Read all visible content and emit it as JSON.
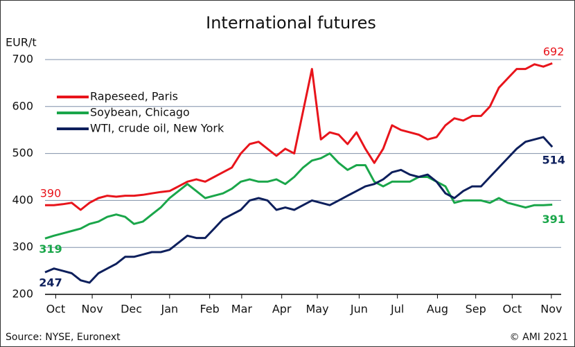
{
  "chart_data": {
    "type": "line",
    "title": "International futures",
    "y_label": "EUR/t",
    "source": "Source: NYSE, Euronext",
    "copyright": "© AMI 2021",
    "x": [
      0,
      1,
      2,
      3,
      4,
      5,
      6,
      7,
      8,
      9,
      10,
      11,
      12,
      13,
      14,
      15,
      16,
      17,
      18,
      19,
      20,
      21,
      22,
      23,
      24,
      25,
      26,
      27,
      28,
      29,
      30,
      31,
      32,
      33,
      34,
      35,
      36,
      37,
      38,
      39,
      40,
      41,
      42,
      43,
      44,
      45,
      46,
      47,
      48,
      49,
      50,
      51,
      52,
      53,
      54,
      55,
      56,
      57
    ],
    "xlim": [
      0,
      58
    ],
    "xticks": [
      {
        "value": 1.2,
        "label": "Oct"
      },
      {
        "value": 5.3,
        "label": "Nov"
      },
      {
        "value": 9.7,
        "label": "Dec"
      },
      {
        "value": 14.0,
        "label": "Jan"
      },
      {
        "value": 18.5,
        "label": "Feb"
      },
      {
        "value": 22.1,
        "label": "Mar"
      },
      {
        "value": 26.6,
        "label": "Apr"
      },
      {
        "value": 30.6,
        "label": "May"
      },
      {
        "value": 35.3,
        "label": "Jun"
      },
      {
        "value": 39.6,
        "label": "Jul"
      },
      {
        "value": 44.1,
        "label": "Aug"
      },
      {
        "value": 48.4,
        "label": "Sep"
      },
      {
        "value": 52.5,
        "label": "Oct"
      },
      {
        "value": 56.9,
        "label": "Nov"
      }
    ],
    "ylim": [
      200,
      700
    ],
    "yticks": [
      200,
      300,
      400,
      500,
      600,
      700
    ],
    "grid": true,
    "legend": "upper left",
    "series": [
      {
        "name": "Rapeseed, Paris",
        "color": "#e8141b",
        "values": [
          390,
          390,
          392,
          395,
          380,
          395,
          405,
          410,
          408,
          410,
          410,
          412,
          415,
          418,
          420,
          430,
          440,
          445,
          440,
          450,
          460,
          470,
          500,
          520,
          525,
          510,
          495,
          510,
          500,
          590,
          680,
          530,
          545,
          540,
          520,
          545,
          510,
          480,
          510,
          560,
          550,
          545,
          540,
          530,
          535,
          560,
          575,
          570,
          580,
          580,
          600,
          640,
          660,
          680,
          680,
          690,
          685,
          692
        ]
      },
      {
        "name": "Soybean, Chicago",
        "color": "#1aa64a",
        "values": [
          319,
          325,
          330,
          335,
          340,
          350,
          355,
          365,
          370,
          365,
          350,
          355,
          370,
          385,
          405,
          420,
          435,
          420,
          405,
          410,
          415,
          425,
          440,
          445,
          440,
          440,
          445,
          435,
          450,
          470,
          485,
          490,
          500,
          480,
          465,
          475,
          475,
          440,
          430,
          440,
          440,
          440,
          450,
          450,
          440,
          430,
          395,
          400,
          400,
          400,
          395,
          405,
          395,
          390,
          385,
          390,
          390,
          391
        ]
      },
      {
        "name": "WTI, crude oil, New York",
        "color": "#0d1f5c",
        "values": [
          247,
          255,
          250,
          245,
          230,
          225,
          245,
          255,
          265,
          280,
          280,
          285,
          290,
          290,
          295,
          310,
          325,
          320,
          320,
          340,
          360,
          370,
          380,
          400,
          405,
          400,
          380,
          385,
          380,
          390,
          400,
          395,
          390,
          400,
          410,
          420,
          430,
          435,
          445,
          460,
          465,
          455,
          450,
          455,
          440,
          415,
          405,
          420,
          430,
          430,
          450,
          470,
          490,
          510,
          525,
          530,
          535,
          514
        ]
      }
    ]
  }
}
